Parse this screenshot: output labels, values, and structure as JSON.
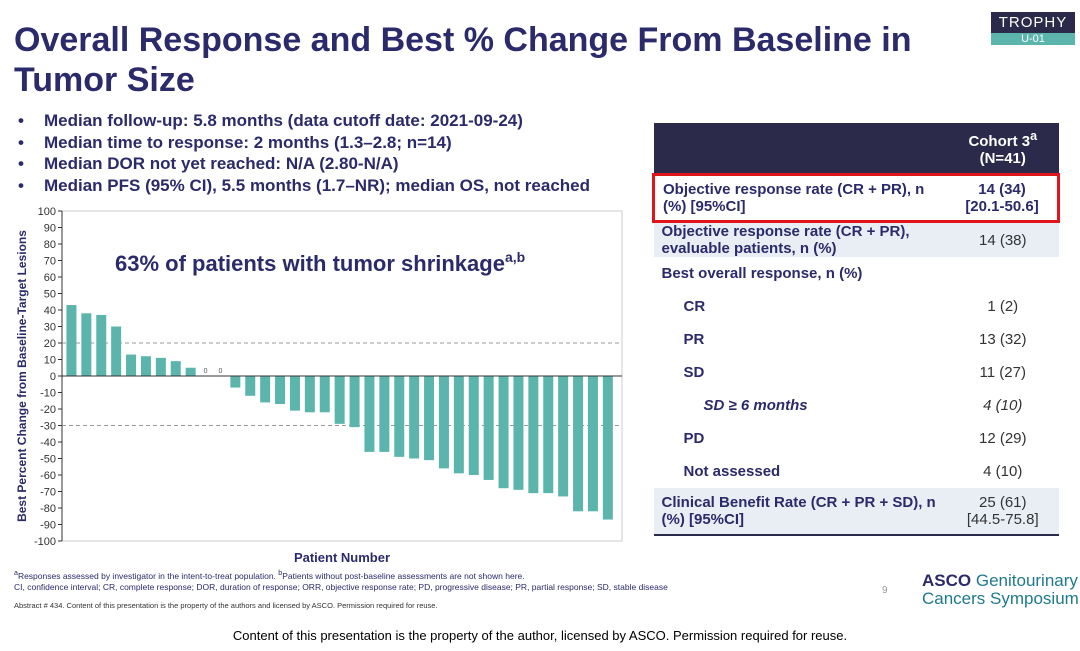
{
  "header": {
    "title": "Overall Response and Best % Change From Baseline in Tumor Size",
    "logo": {
      "name": "TROPHY",
      "sub": "U-01"
    }
  },
  "bullets": [
    "Median follow-up: 5.8 months (data cutoff date: 2021-09-24)",
    "Median time to response: 2 months (1.3–2.8; n=14)",
    "Median DOR not yet reached: N/A (2.80-N/A)",
    "Median PFS (95% CI), 5.5 months (1.7–NR); median OS, not reached"
  ],
  "chart_data": {
    "type": "bar",
    "y_label": "Best Percent Change from Baseline-Target Lesions",
    "x_label": "Patient Number",
    "annotation": "63% of patients with tumor shrinkage",
    "annotation_sup": "a,b",
    "values": [
      43,
      38,
      37,
      30,
      13,
      12,
      11,
      9,
      5,
      0,
      0,
      -7,
      -12,
      -16,
      -17,
      -21,
      -22,
      -22,
      -29,
      -31,
      -46,
      -46,
      -49,
      -50,
      -51,
      -56,
      -59,
      -60,
      -63,
      -68,
      -69,
      -71,
      -71,
      -73,
      -82,
      -82,
      -87
    ],
    "color": "#5bb5ad",
    "ylim": [
      -100,
      100
    ],
    "yticks": [
      -100,
      -90,
      -80,
      -70,
      -60,
      -50,
      -40,
      -30,
      -20,
      -10,
      0,
      10,
      20,
      30,
      40,
      50,
      60,
      70,
      80,
      90,
      100
    ],
    "reference_lines": [
      20,
      -30
    ]
  },
  "table": {
    "header": {
      "label": "Cohort 3",
      "sup": "a",
      "n": "(N=41)"
    },
    "rows": [
      {
        "label": "Objective response rate (CR + PR), n (%) [95%CI]",
        "value": "14 (34)",
        "ci": "[20.1-50.6]",
        "highlight": true
      },
      {
        "label": "Objective response rate (CR + PR), evaluable patients, n (%)",
        "value": "14 (38)",
        "shaded": true
      },
      {
        "label": "Best overall response, n (%)",
        "value": null
      },
      {
        "label": "CR",
        "value": "1 (2)",
        "indent": true
      },
      {
        "label": "PR",
        "value": "13 (32)",
        "indent": true
      },
      {
        "label": "SD",
        "value": "11 (27)",
        "indent": true
      },
      {
        "label": "SD ≥ 6 months",
        "value": "4 (10)",
        "italic": true
      },
      {
        "label": "PD",
        "value": "12 (29)",
        "indent": true
      },
      {
        "label": "Not assessed",
        "value": "4 (10)",
        "indent": true
      },
      {
        "label": "Clinical Benefit Rate (CR + PR + SD), n (%) [95%CI]",
        "value": "25 (61)",
        "ci": "[44.5-75.8]",
        "shaded": true
      }
    ]
  },
  "footnotes": [
    {
      "mark": "a",
      "text": "Responses assessed by investigator in the intent-to-treat population. "
    },
    {
      "mark": "b",
      "text": "Patients without post-baseline assessments are not shown here."
    }
  ],
  "abbreviations": "CI, confidence interval; CR, complete response; DOR, duration of response; ORR, objective response rate; PD, progressive disease; PR, partial response; SD, stable disease",
  "page_number": "9",
  "abstract_note": "Abstract # 434. Content of this presentation is the property of the authors and licensed by ASCO. Permission required for reuse.",
  "asco": {
    "brand": "ASCO",
    "line1": "Genitourinary",
    "line2": "Cancers Symposium"
  },
  "footer": "Content of this presentation is the property of the author, licensed by ASCO. Permission required for reuse."
}
